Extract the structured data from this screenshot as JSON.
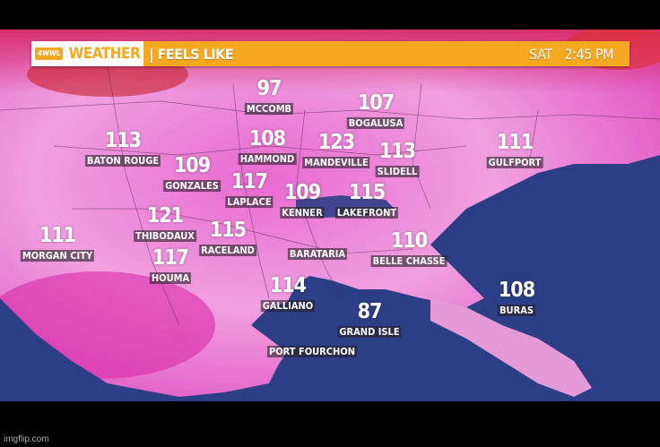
{
  "header": {
    "logo": "4WWL",
    "brand": "WEATHER",
    "title": "| FEELS LIKE",
    "day": "SAT",
    "time": "2:45 PM"
  },
  "colors": {
    "banner": "#f6a821",
    "land_heat": "#e04fc0",
    "water": "#2c3f86"
  },
  "cities": [
    {
      "value": "97",
      "name": "MCCOMB"
    },
    {
      "value": "107",
      "name": "BOGALUSA"
    },
    {
      "value": "113",
      "name": "BATON ROUGE"
    },
    {
      "value": "108",
      "name": "HAMMOND"
    },
    {
      "value": "123",
      "name": "MANDEVILLE"
    },
    {
      "value": "113",
      "name": "SLIDELL"
    },
    {
      "value": "111",
      "name": "GULFPORT"
    },
    {
      "value": "109",
      "name": "GONZALES"
    },
    {
      "value": "117",
      "name": "LAPLACE"
    },
    {
      "value": "109",
      "name": "KENNER"
    },
    {
      "value": "115",
      "name": "LAKEFRONT"
    },
    {
      "value": "121",
      "name": "THIBODAUX"
    },
    {
      "value": "115",
      "name": "RACELAND"
    },
    {
      "value": "111",
      "name": "MORGAN CITY"
    },
    {
      "value": "117",
      "name": "HOUMA"
    },
    {
      "value": "",
      "name": "BARATARIA"
    },
    {
      "value": "110",
      "name": "BELLE CHASSE"
    },
    {
      "value": "114",
      "name": "GALLIANO"
    },
    {
      "value": "108",
      "name": "BURAS"
    },
    {
      "value": "87",
      "name": "GRAND ISLE"
    },
    {
      "value": "",
      "name": "PORT FOURCHON"
    }
  ],
  "watermark": "imgflip.com"
}
